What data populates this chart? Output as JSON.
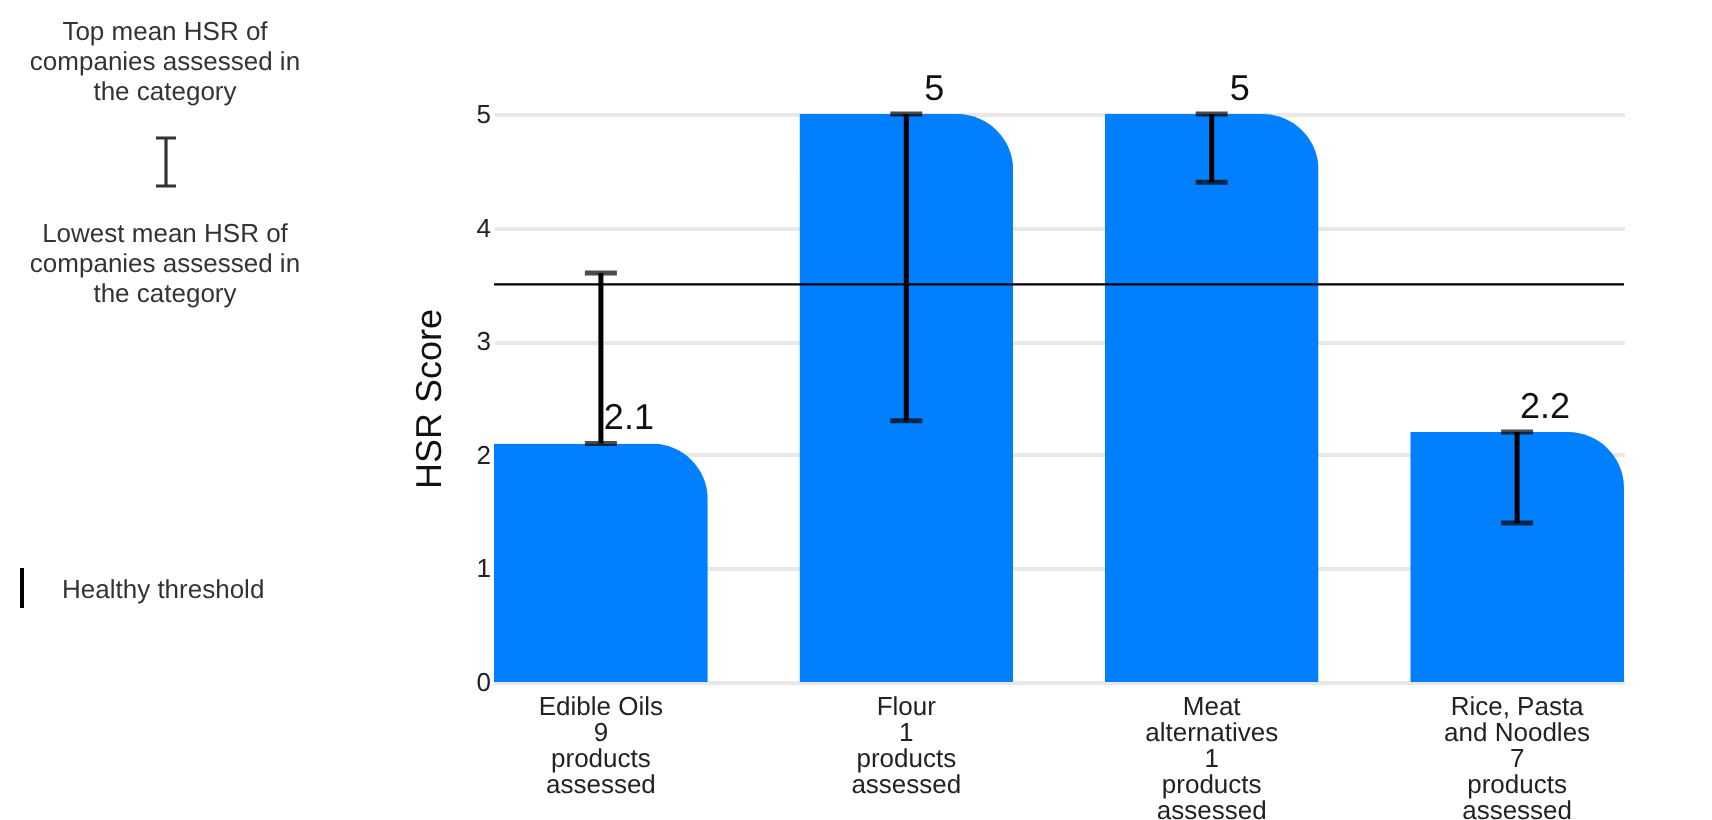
{
  "chart_data": {
    "type": "bar",
    "ylabel": "HSR Score",
    "categories": [
      "Edible Oils\n\n9\nproducts\nassessed",
      "Flour\n\n1\nproducts\nassessed",
      "Meat\nalternatives\n1\nproducts\nassessed",
      "Rice, Pasta\nand Noodles\n7\nproducts\nassessed"
    ],
    "values": [
      2.1,
      5,
      5,
      2.2
    ],
    "color": "#007fff",
    "errors": [
      [
        2.1,
        3.6
      ],
      [
        2.3,
        5
      ],
      [
        4.4,
        5
      ],
      [
        1.4,
        2.2
      ]
    ],
    "data_labels": true,
    "ylim": [
      0,
      5
    ],
    "yticks": [
      0,
      1,
      2,
      3,
      4,
      5
    ],
    "grid": "y",
    "ref_lines": [
      {
        "axis": "y",
        "value": 3.5,
        "label": "Healthy threshold",
        "color": "#000000"
      }
    ],
    "annotations": [
      "Top mean HSR of companies assessed in the category",
      "Lowest mean HSR of companies assessed in the category"
    ]
  }
}
